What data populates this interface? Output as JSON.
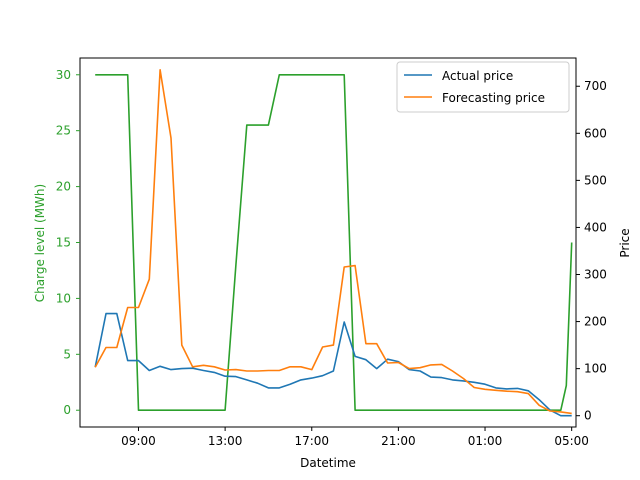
{
  "chart_data": {
    "type": "line",
    "xlabel": "Datetime",
    "y_left_label": "Charge level (MWh)",
    "y_right_label": "Price",
    "x_ticks": [
      "09:00",
      "13:00",
      "17:00",
      "21:00",
      "01:00",
      "05:00"
    ],
    "x_tick_hours": [
      9,
      13,
      17,
      21,
      25,
      29
    ],
    "x_range_hours": [
      6.3,
      29.2
    ],
    "y_left_ticks": [
      0,
      5,
      10,
      15,
      20,
      25,
      30
    ],
    "y_left_range": [
      -1.5,
      31.5
    ],
    "y_right_ticks": [
      0,
      100,
      200,
      300,
      400,
      500,
      600,
      700
    ],
    "y_right_range": [
      -24,
      760
    ],
    "colors": {
      "actual": "#1f77b4",
      "forecast": "#ff7f0e",
      "charge": "#2ca02c",
      "left_axis": "#2ca02c",
      "right_axis": "#000000"
    },
    "legend": {
      "placement": "upper right",
      "entries": [
        {
          "key": "actual",
          "label": "Actual price"
        },
        {
          "key": "forecast",
          "label": "Forecasting price"
        }
      ]
    },
    "series": [
      {
        "key": "charge",
        "axis": "left",
        "hours": [
          7.0,
          7.5,
          8.0,
          8.5,
          9.0,
          9.5,
          10.0,
          10.5,
          11.0,
          11.5,
          12.0,
          12.5,
          13.0,
          13.5,
          14.0,
          14.5,
          15.0,
          15.5,
          16.0,
          16.5,
          17.0,
          17.5,
          18.0,
          18.5,
          19.0,
          19.5,
          20.0,
          20.5,
          21.0,
          21.5,
          22.0,
          22.5,
          23.0,
          23.5,
          24.0,
          24.5,
          25.0,
          25.5,
          26.0,
          26.5,
          27.0,
          27.5,
          28.0
        ],
        "values": [
          30,
          30,
          30,
          30,
          0,
          0,
          0,
          0,
          0,
          0,
          0,
          0,
          0,
          13,
          25.5,
          25.5,
          25.5,
          30,
          30,
          30,
          30,
          30,
          30,
          30,
          0,
          0,
          0,
          0,
          0,
          0,
          0,
          0,
          0,
          0,
          0,
          0,
          0,
          0,
          0,
          0,
          0,
          0,
          0
        ]
      },
      {
        "key": "charge_tail",
        "axis": "left",
        "hours": [
          28.0,
          28.25,
          28.5,
          28.75,
          29.0
        ],
        "values": [
          0,
          0,
          0,
          2.2,
          15
        ]
      },
      {
        "key": "actual",
        "axis": "right",
        "hours": [
          7.0,
          7.5,
          8.0,
          8.5,
          9.0,
          9.5,
          10.0,
          10.5,
          11.0,
          11.5,
          12.0,
          12.5,
          13.0,
          13.5,
          14.0,
          14.5,
          15.0,
          15.5,
          16.0,
          16.5,
          17.0,
          17.5,
          18.0,
          18.5,
          19.0,
          19.5,
          20.0,
          20.5,
          21.0,
          21.5,
          22.0,
          22.5,
          23.0,
          23.5,
          24.0,
          24.5,
          25.0,
          25.5,
          26.0,
          26.5,
          27.0,
          27.5,
          28.0,
          28.5,
          29.0
        ],
        "values": [
          103,
          217,
          217,
          117,
          117,
          96,
          105,
          98,
          100,
          101,
          96,
          92,
          84,
          83,
          76,
          69,
          59,
          59,
          67,
          76,
          80,
          85,
          95,
          199,
          126,
          119,
          100,
          120,
          115,
          98,
          95,
          82,
          81,
          76,
          74,
          71,
          67,
          59,
          57,
          58,
          53,
          34,
          12,
          0,
          0
        ]
      },
      {
        "key": "forecast",
        "axis": "right",
        "hours": [
          7.0,
          7.5,
          8.0,
          8.5,
          9.0,
          9.5,
          10.0,
          10.5,
          11.0,
          11.5,
          12.0,
          12.5,
          13.0,
          13.5,
          14.0,
          14.5,
          15.0,
          15.5,
          16.0,
          16.5,
          17.0,
          17.5,
          18.0,
          18.5,
          19.0,
          19.5,
          20.0,
          20.5,
          21.0,
          21.5,
          22.0,
          22.5,
          23.0,
          23.5,
          24.0,
          24.5,
          25.0,
          25.5,
          26.0,
          26.5,
          27.0,
          27.5,
          28.0,
          28.5,
          29.0
        ],
        "values": [
          103,
          145,
          145,
          230,
          230,
          290,
          735,
          590,
          150,
          104,
          107,
          104,
          97,
          98,
          95,
          95,
          96,
          96,
          104,
          104,
          98,
          146,
          150,
          316,
          319,
          153,
          153,
          112,
          113,
          100,
          102,
          108,
          109,
          95,
          79,
          60,
          56,
          54,
          52,
          51,
          47,
          22,
          10,
          8,
          5
        ]
      }
    ]
  }
}
